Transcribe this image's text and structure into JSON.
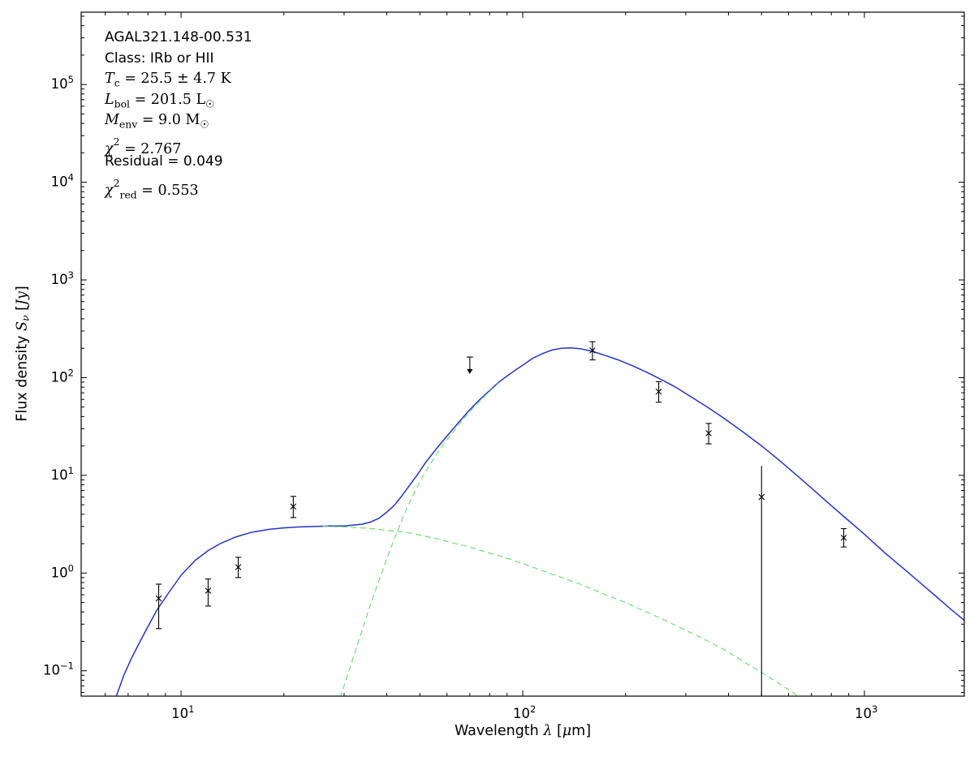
{
  "page": {
    "background": "#ffffff"
  },
  "annotation": {
    "lines": [
      {
        "segments": [
          {
            "text": "AGAL321.148-00.531"
          }
        ]
      },
      {
        "segments": [
          {
            "text": "Class: IRb or HII"
          }
        ]
      },
      {
        "segments": [
          {
            "text": "T"
          },
          {
            "text": "c"
          },
          {
            "text": " = 25.5 ± 4.7 K"
          }
        ]
      },
      {
        "segments": [
          {
            "text": "L"
          },
          {
            "text": "bol"
          },
          {
            "text": " = 201.5 L"
          },
          {
            "text": "☉"
          }
        ]
      },
      {
        "segments": [
          {
            "text": "M"
          },
          {
            "text": "env"
          },
          {
            "text": " = 9.0 M"
          },
          {
            "text": "☉"
          }
        ]
      },
      {
        "segments": [
          {
            "text": "χ"
          },
          {
            "text": "2"
          },
          {
            "text": " = 2.767"
          }
        ]
      },
      {
        "segments": [
          {
            "text": "Residual = 0.049"
          }
        ]
      },
      {
        "segments": [
          {
            "text": "χ"
          },
          {
            "text": "2"
          },
          {
            "text": "red"
          },
          {
            "text": " = 0.553"
          }
        ]
      }
    ]
  },
  "chart_data": {
    "type": "line",
    "title": "",
    "xlabel": "Wavelength λ [μm]",
    "ylabel": "Flux density Sν [Jy]",
    "xlabel_segments": [
      {
        "text": "Wavelength "
      },
      {
        "text": "λ"
      },
      {
        "text": " ["
      },
      {
        "text": "μ"
      },
      {
        "text": "m]"
      }
    ],
    "ylabel_segments": [
      {
        "text": "Flux density "
      },
      {
        "text": "S"
      },
      {
        "text": "ν"
      },
      {
        "text": " ["
      },
      {
        "text": "Jy"
      },
      {
        "text": "]"
      }
    ],
    "xscale": "log",
    "yscale": "log",
    "xlim": [
      5.1,
      1960
    ],
    "ylim": [
      0.055,
      550000
    ],
    "x_tick_exponents": [
      1,
      2,
      3
    ],
    "y_tick_exponents": [
      -1,
      0,
      1,
      2,
      3,
      4,
      5
    ],
    "grid": false,
    "legend": false,
    "colors": {
      "fit": "#2333cc",
      "components": "#6ee06e",
      "data": "#000000",
      "frame": "#000000"
    },
    "series": [
      {
        "id": "total-fit-curve",
        "name": "total fit (warm + cold component)",
        "style": "solid",
        "color_key": "fit",
        "width": 1.5,
        "points": [
          [
            6.4,
            0.05
          ],
          [
            6.8,
            0.09
          ],
          [
            7.2,
            0.14
          ],
          [
            7.8,
            0.24
          ],
          [
            8.5,
            0.42
          ],
          [
            9.2,
            0.63
          ],
          [
            10,
            0.95
          ],
          [
            11,
            1.35
          ],
          [
            12,
            1.7
          ],
          [
            13,
            2.0
          ],
          [
            14.5,
            2.35
          ],
          [
            16,
            2.6
          ],
          [
            18,
            2.8
          ],
          [
            20,
            2.9
          ],
          [
            22,
            2.96
          ],
          [
            25,
            3.0
          ],
          [
            28,
            3.03
          ],
          [
            30,
            3.04
          ],
          [
            32,
            3.1
          ],
          [
            34,
            3.17
          ],
          [
            36,
            3.35
          ],
          [
            38,
            3.65
          ],
          [
            40,
            4.2
          ],
          [
            42,
            4.9
          ],
          [
            44,
            6.0
          ],
          [
            46,
            7.4
          ],
          [
            49,
            10
          ],
          [
            52,
            13.6
          ],
          [
            56,
            18.9
          ],
          [
            60,
            25.2
          ],
          [
            65,
            35
          ],
          [
            70,
            46.9
          ],
          [
            75,
            60
          ],
          [
            80,
            73.6
          ],
          [
            85,
            89.5
          ],
          [
            90,
            104
          ],
          [
            95,
            119
          ],
          [
            100,
            134
          ],
          [
            107,
            158
          ],
          [
            115,
            178
          ],
          [
            122,
            192
          ],
          [
            130,
            200
          ],
          [
            138,
            202
          ],
          [
            147,
            198
          ],
          [
            160,
            186
          ],
          [
            175,
            168
          ],
          [
            190,
            152
          ],
          [
            210,
            132
          ],
          [
            230,
            114
          ],
          [
            255,
            95
          ],
          [
            280,
            80
          ],
          [
            310,
            64
          ],
          [
            350,
            49
          ],
          [
            390,
            38
          ],
          [
            440,
            28
          ],
          [
            500,
            20
          ],
          [
            560,
            14.5
          ],
          [
            630,
            10.2
          ],
          [
            700,
            7.4
          ],
          [
            800,
            4.9
          ],
          [
            870,
            3.8
          ],
          [
            1000,
            2.5
          ],
          [
            1150,
            1.6
          ],
          [
            1350,
            1.0
          ],
          [
            1550,
            0.66
          ],
          [
            1800,
            0.42
          ],
          [
            2000,
            0.31
          ]
        ]
      },
      {
        "id": "cold-component-curve",
        "name": "cold dust component",
        "style": "dashed",
        "color_key": "components",
        "width": 1.2,
        "points": [
          [
            28,
            0.035
          ],
          [
            30,
            0.07
          ],
          [
            32,
            0.14
          ],
          [
            34,
            0.27
          ],
          [
            36,
            0.5
          ],
          [
            38,
            0.85
          ],
          [
            40,
            1.4
          ],
          [
            42,
            2.2
          ],
          [
            44,
            3.3
          ],
          [
            46,
            4.8
          ],
          [
            49,
            7.5
          ],
          [
            52,
            11
          ],
          [
            56,
            16.5
          ],
          [
            60,
            23
          ],
          [
            65,
            33
          ],
          [
            70,
            45
          ],
          [
            75,
            58
          ],
          [
            80,
            72
          ],
          [
            85,
            88
          ]
        ]
      },
      {
        "id": "warm-component-curve",
        "name": "warm component",
        "style": "dashed",
        "color_key": "components",
        "width": 1.2,
        "points": [
          [
            26,
            3.0
          ],
          [
            30,
            2.97
          ],
          [
            34,
            2.9
          ],
          [
            38,
            2.8
          ],
          [
            42,
            2.7
          ],
          [
            46,
            2.6
          ],
          [
            50,
            2.45
          ],
          [
            56,
            2.25
          ],
          [
            62,
            2.05
          ],
          [
            70,
            1.85
          ],
          [
            80,
            1.6
          ],
          [
            90,
            1.42
          ],
          [
            100,
            1.25
          ],
          [
            115,
            1.05
          ],
          [
            130,
            0.9
          ],
          [
            150,
            0.75
          ],
          [
            175,
            0.6
          ],
          [
            200,
            0.5
          ],
          [
            230,
            0.4
          ],
          [
            260,
            0.33
          ],
          [
            300,
            0.26
          ],
          [
            350,
            0.2
          ],
          [
            400,
            0.155
          ],
          [
            450,
            0.12
          ],
          [
            500,
            0.096
          ],
          [
            550,
            0.078
          ],
          [
            600,
            0.064
          ],
          [
            650,
            0.053
          ],
          [
            700,
            0.044
          ]
        ]
      }
    ],
    "data_points": [
      {
        "x": 8.6,
        "y": 0.55,
        "yerr_lo": 0.27,
        "yerr_hi": 0.77
      },
      {
        "x": 12.0,
        "y": 0.66,
        "yerr_lo": 0.46,
        "yerr_hi": 0.87
      },
      {
        "x": 14.7,
        "y": 1.15,
        "yerr_lo": 0.9,
        "yerr_hi": 1.45
      },
      {
        "x": 21.3,
        "y": 4.8,
        "yerr_lo": 3.7,
        "yerr_hi": 6.1
      },
      {
        "x": 70,
        "y": 140,
        "upper_limit": true
      },
      {
        "x": 160,
        "y": 190,
        "yerr_lo": 152,
        "yerr_hi": 233
      },
      {
        "x": 250,
        "y": 72,
        "yerr_lo": 56,
        "yerr_hi": 91
      },
      {
        "x": 350,
        "y": 27,
        "yerr_lo": 21,
        "yerr_hi": 34
      },
      {
        "x": 500,
        "y": 6.0,
        "yerr_lo": 0.05,
        "yerr_hi": 12.5,
        "caps": false
      },
      {
        "x": 870,
        "y": 2.3,
        "yerr_lo": 1.85,
        "yerr_hi": 2.85
      }
    ]
  }
}
